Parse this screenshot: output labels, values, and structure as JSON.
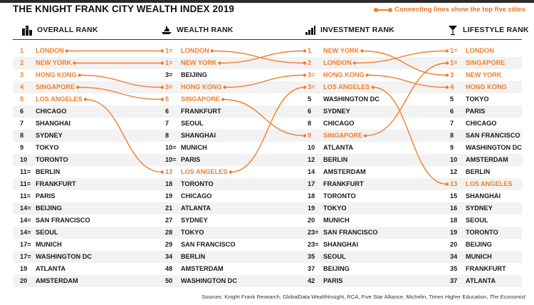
{
  "title": "THE KNIGHT FRANK CITY WEALTH INDEX 2019",
  "legend_text": "Connecting lines show the top five cities",
  "accent_color": "#f07d2e",
  "source_text": "Sources: Knight Frank Research, GlobalData WealthInsight, RCA, Five Star Alliance, Michelin, Times Higher Education,",
  "source_italic": "The Economist",
  "columns": [
    {
      "label": "OVERALL RANK",
      "icon": "city-skyline-icon"
    },
    {
      "label": "WEALTH RANK",
      "icon": "yacht-icon"
    },
    {
      "label": "INVESTMENT RANK",
      "icon": "bar-chart-icon"
    },
    {
      "label": "LIFESTYLE RANK",
      "icon": "cocktail-glass-icon"
    }
  ],
  "chart_data": {
    "type": "table",
    "title": "THE KNIGHT FRANK CITY WEALTH INDEX 2019",
    "highlighted": [
      "LONDON",
      "NEW YORK",
      "HONG KONG",
      "SINGAPORE",
      "LOS ANGELES"
    ],
    "columns": [
      {
        "name": "OVERALL RANK",
        "rows": [
          [
            "1",
            "LONDON"
          ],
          [
            "2",
            "NEW YORK"
          ],
          [
            "3",
            "HONG KONG"
          ],
          [
            "4",
            "SINGAPORE"
          ],
          [
            "5",
            "LOS ANGELES"
          ],
          [
            "6",
            "CHICAGO"
          ],
          [
            "7",
            "SHANGHAI"
          ],
          [
            "8",
            "SYDNEY"
          ],
          [
            "9",
            "TOKYO"
          ],
          [
            "10",
            "TORONTO"
          ],
          [
            "11=",
            "BERLIN"
          ],
          [
            "11=",
            "FRANKFURT"
          ],
          [
            "11=",
            "PARIS"
          ],
          [
            "14=",
            "BEIJING"
          ],
          [
            "14=",
            "SAN FRANCISCO"
          ],
          [
            "14=",
            "SEOUL"
          ],
          [
            "17=",
            "MUNICH"
          ],
          [
            "17=",
            "WASHINGTON DC"
          ],
          [
            "19",
            "ATLANTA"
          ],
          [
            "20",
            "AMSTERDAM"
          ]
        ]
      },
      {
        "name": "WEALTH RANK",
        "rows": [
          [
            "1=",
            "LONDON"
          ],
          [
            "1=",
            "NEW YORK"
          ],
          [
            "3=",
            "BEIJING"
          ],
          [
            "3=",
            "HONG KONG"
          ],
          [
            "5",
            "SINGAPORE"
          ],
          [
            "6",
            "FRANKFURT"
          ],
          [
            "7",
            "SEOUL"
          ],
          [
            "8",
            "SHANGHAI"
          ],
          [
            "10=",
            "MUNICH"
          ],
          [
            "10=",
            "PARIS"
          ],
          [
            "13",
            "LOS ANGELES"
          ],
          [
            "18",
            "TORONTO"
          ],
          [
            "19",
            "CHICAGO"
          ],
          [
            "21",
            "ATLANTA"
          ],
          [
            "27",
            "SYDNEY"
          ],
          [
            "28",
            "TOKYO"
          ],
          [
            "29",
            "SAN FRANCISCO"
          ],
          [
            "34",
            "BERLIN"
          ],
          [
            "48",
            "AMSTERDAM"
          ],
          [
            "50",
            "WASHINGTON DC"
          ]
        ]
      },
      {
        "name": "INVESTMENT RANK",
        "rows": [
          [
            "1",
            "NEW YORK"
          ],
          [
            "2",
            "LONDON"
          ],
          [
            "3=",
            "HONG KONG"
          ],
          [
            "3=",
            "LOS ANGELES"
          ],
          [
            "5",
            "WASHINGTON DC"
          ],
          [
            "6",
            "SYDNEY"
          ],
          [
            "8",
            "CHICAGO"
          ],
          [
            "9",
            "SINGAPORE"
          ],
          [
            "10",
            "ATLANTA"
          ],
          [
            "12",
            "BERLIN"
          ],
          [
            "14",
            "AMSTERDAM"
          ],
          [
            "17",
            "FRANKFURT"
          ],
          [
            "18",
            "TORONTO"
          ],
          [
            "19",
            "TOKYO"
          ],
          [
            "20",
            "MUNICH"
          ],
          [
            "23=",
            "SAN FRANCISCO"
          ],
          [
            "23=",
            "SHANGHAI"
          ],
          [
            "35",
            "SEOUL"
          ],
          [
            "37",
            "BEIJING"
          ],
          [
            "42",
            "PARIS"
          ]
        ]
      },
      {
        "name": "LIFESTYLE RANK",
        "rows": [
          [
            "1=",
            "LONDON"
          ],
          [
            "1=",
            "SINGAPORE"
          ],
          [
            "3",
            "NEW YORK"
          ],
          [
            "4",
            "HONG KONG"
          ],
          [
            "5",
            "TOKYO"
          ],
          [
            "6",
            "PARIS"
          ],
          [
            "7",
            "CHICAGO"
          ],
          [
            "8",
            "SAN FRANCISCO"
          ],
          [
            "9",
            "WASHINGTON DC"
          ],
          [
            "10",
            "AMSTERDAM"
          ],
          [
            "12",
            "BERLIN"
          ],
          [
            "13",
            "LOS ANGELES"
          ],
          [
            "15",
            "SHANGHAI"
          ],
          [
            "16",
            "SYDNEY"
          ],
          [
            "18",
            "SEOUL"
          ],
          [
            "19",
            "TORONTO"
          ],
          [
            "20",
            "BEIJING"
          ],
          [
            "34",
            "MUNICH"
          ],
          [
            "35",
            "FRANKFURT"
          ],
          [
            "37",
            "ATLANTA"
          ]
        ]
      }
    ]
  }
}
